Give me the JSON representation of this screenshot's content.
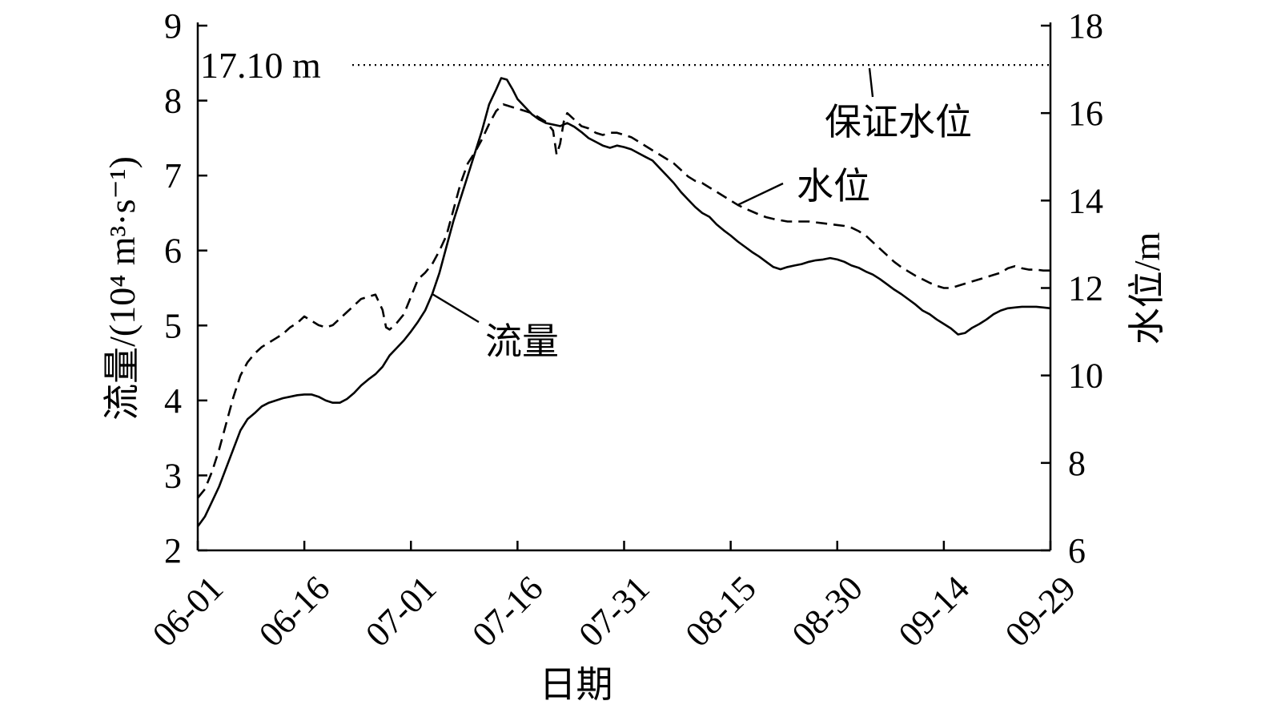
{
  "chart_data": {
    "type": "line",
    "xlabel": "日期",
    "x_tick_labels": [
      "06-01",
      "06-16",
      "07-01",
      "07-16",
      "07-31",
      "08-15",
      "08-30",
      "09-14",
      "09-29"
    ],
    "x_tick_days": [
      0,
      15,
      30,
      45,
      60,
      75,
      90,
      105,
      120
    ],
    "x_unit": "days since 06-01",
    "y_left": {
      "label": "流量/(10⁴ m³·s⁻¹)",
      "lim": [
        2,
        9
      ],
      "ticks": [
        "2",
        "3",
        "4",
        "5",
        "6",
        "7",
        "8",
        "9"
      ]
    },
    "y_right": {
      "label": "水位/m",
      "lim": [
        6,
        18
      ],
      "ticks": [
        "6",
        "8",
        "10",
        "12",
        "14",
        "16",
        "18"
      ]
    },
    "guarantee_level": {
      "value": 17.1,
      "text": "17.10 m",
      "label": "保证水位"
    },
    "series": [
      {
        "name": "流量",
        "axis": "left",
        "style": "solid",
        "points": [
          [
            0,
            2.32
          ],
          [
            1,
            2.45
          ],
          [
            2,
            2.65
          ],
          [
            3,
            2.85
          ],
          [
            4,
            3.1
          ],
          [
            5,
            3.35
          ],
          [
            6,
            3.6
          ],
          [
            7,
            3.75
          ],
          [
            8,
            3.83
          ],
          [
            9,
            3.92
          ],
          [
            10,
            3.97
          ],
          [
            11,
            4.0
          ],
          [
            12,
            4.03
          ],
          [
            13,
            4.05
          ],
          [
            14,
            4.07
          ],
          [
            15,
            4.08
          ],
          [
            16,
            4.08
          ],
          [
            17,
            4.05
          ],
          [
            18,
            4.0
          ],
          [
            19,
            3.97
          ],
          [
            20,
            3.97
          ],
          [
            21,
            4.02
          ],
          [
            22,
            4.1
          ],
          [
            23,
            4.2
          ],
          [
            24,
            4.28
          ],
          [
            25,
            4.35
          ],
          [
            26,
            4.45
          ],
          [
            27,
            4.6
          ],
          [
            28,
            4.7
          ],
          [
            29,
            4.8
          ],
          [
            30,
            4.92
          ],
          [
            31,
            5.05
          ],
          [
            32,
            5.2
          ],
          [
            33,
            5.42
          ],
          [
            34,
            5.7
          ],
          [
            35,
            6.05
          ],
          [
            36,
            6.4
          ],
          [
            37,
            6.7
          ],
          [
            38,
            7.0
          ],
          [
            39,
            7.3
          ],
          [
            40,
            7.6
          ],
          [
            41,
            7.95
          ],
          [
            42,
            8.15
          ],
          [
            42.7,
            8.3
          ],
          [
            43.5,
            8.28
          ],
          [
            44.3,
            8.15
          ],
          [
            45,
            8.02
          ],
          [
            46,
            7.92
          ],
          [
            47,
            7.82
          ],
          [
            48,
            7.75
          ],
          [
            49,
            7.7
          ],
          [
            50,
            7.68
          ],
          [
            51,
            7.66
          ],
          [
            52,
            7.7
          ],
          [
            53,
            7.65
          ],
          [
            54,
            7.58
          ],
          [
            55,
            7.5
          ],
          [
            56,
            7.45
          ],
          [
            57,
            7.4
          ],
          [
            58,
            7.37
          ],
          [
            59,
            7.4
          ],
          [
            60,
            7.38
          ],
          [
            61,
            7.35
          ],
          [
            62,
            7.3
          ],
          [
            63,
            7.25
          ],
          [
            64,
            7.2
          ],
          [
            65,
            7.1
          ],
          [
            66,
            7.0
          ],
          [
            67,
            6.9
          ],
          [
            68,
            6.78
          ],
          [
            69,
            6.68
          ],
          [
            70,
            6.58
          ],
          [
            71,
            6.5
          ],
          [
            72,
            6.45
          ],
          [
            73,
            6.35
          ],
          [
            74,
            6.27
          ],
          [
            75,
            6.2
          ],
          [
            76,
            6.12
          ],
          [
            77,
            6.05
          ],
          [
            78,
            5.98
          ],
          [
            79,
            5.92
          ],
          [
            80,
            5.85
          ],
          [
            81,
            5.78
          ],
          [
            82,
            5.75
          ],
          [
            83,
            5.78
          ],
          [
            84,
            5.8
          ],
          [
            85,
            5.82
          ],
          [
            86,
            5.85
          ],
          [
            87,
            5.87
          ],
          [
            88,
            5.88
          ],
          [
            89,
            5.9
          ],
          [
            90,
            5.88
          ],
          [
            91,
            5.85
          ],
          [
            92,
            5.8
          ],
          [
            93,
            5.77
          ],
          [
            94,
            5.72
          ],
          [
            95,
            5.68
          ],
          [
            96,
            5.62
          ],
          [
            97,
            5.55
          ],
          [
            98,
            5.48
          ],
          [
            99,
            5.42
          ],
          [
            100,
            5.35
          ],
          [
            101,
            5.28
          ],
          [
            102,
            5.2
          ],
          [
            103,
            5.15
          ],
          [
            104,
            5.08
          ],
          [
            105,
            5.02
          ],
          [
            106,
            4.96
          ],
          [
            107,
            4.88
          ],
          [
            108,
            4.9
          ],
          [
            109,
            4.97
          ],
          [
            110,
            5.02
          ],
          [
            111,
            5.08
          ],
          [
            112,
            5.15
          ],
          [
            113,
            5.2
          ],
          [
            114,
            5.23
          ],
          [
            115,
            5.24
          ],
          [
            116,
            5.25
          ],
          [
            117,
            5.25
          ],
          [
            118,
            5.25
          ],
          [
            119,
            5.24
          ],
          [
            120,
            5.23
          ]
        ]
      },
      {
        "name": "水位",
        "axis": "right",
        "style": "dashed",
        "points": [
          [
            0,
            7.2
          ],
          [
            1,
            7.4
          ],
          [
            2,
            7.8
          ],
          [
            3,
            8.3
          ],
          [
            4,
            8.9
          ],
          [
            5,
            9.5
          ],
          [
            6,
            10.0
          ],
          [
            7,
            10.3
          ],
          [
            8,
            10.5
          ],
          [
            9,
            10.65
          ],
          [
            10,
            10.75
          ],
          [
            11,
            10.85
          ],
          [
            12,
            10.95
          ],
          [
            13,
            11.1
          ],
          [
            14,
            11.2
          ],
          [
            15,
            11.35
          ],
          [
            16,
            11.25
          ],
          [
            17,
            11.15
          ],
          [
            18,
            11.1
          ],
          [
            19,
            11.15
          ],
          [
            20,
            11.3
          ],
          [
            21,
            11.45
          ],
          [
            22,
            11.6
          ],
          [
            23,
            11.75
          ],
          [
            24,
            11.8
          ],
          [
            25,
            11.85
          ],
          [
            26,
            11.5
          ],
          [
            26.5,
            11.1
          ],
          [
            27,
            11.05
          ],
          [
            28,
            11.2
          ],
          [
            29,
            11.4
          ],
          [
            30,
            11.8
          ],
          [
            31,
            12.2
          ],
          [
            32,
            12.35
          ],
          [
            33,
            12.55
          ],
          [
            34,
            12.85
          ],
          [
            35,
            13.2
          ],
          [
            36,
            13.8
          ],
          [
            37,
            14.4
          ],
          [
            38,
            14.85
          ],
          [
            39,
            15.1
          ],
          [
            40,
            15.4
          ],
          [
            41,
            15.75
          ],
          [
            42,
            16.05
          ],
          [
            43,
            16.2
          ],
          [
            44,
            16.15
          ],
          [
            45,
            16.1
          ],
          [
            46,
            16.05
          ],
          [
            47,
            16.0
          ],
          [
            48,
            15.9
          ],
          [
            49,
            15.8
          ],
          [
            50,
            15.6
          ],
          [
            50.5,
            15.05
          ],
          [
            51,
            15.3
          ],
          [
            51.5,
            15.8
          ],
          [
            52,
            16.0
          ],
          [
            53,
            15.85
          ],
          [
            54,
            15.7
          ],
          [
            55,
            15.65
          ],
          [
            56,
            15.55
          ],
          [
            57,
            15.5
          ],
          [
            58,
            15.55
          ],
          [
            59,
            15.55
          ],
          [
            60,
            15.5
          ],
          [
            61,
            15.45
          ],
          [
            62,
            15.35
          ],
          [
            63,
            15.25
          ],
          [
            64,
            15.15
          ],
          [
            65,
            15.05
          ],
          [
            66,
            14.95
          ],
          [
            67,
            14.85
          ],
          [
            68,
            14.7
          ],
          [
            69,
            14.55
          ],
          [
            70,
            14.45
          ],
          [
            71,
            14.4
          ],
          [
            72,
            14.3
          ],
          [
            73,
            14.2
          ],
          [
            74,
            14.1
          ],
          [
            75,
            14.0
          ],
          [
            76,
            13.9
          ],
          [
            77,
            13.82
          ],
          [
            78,
            13.75
          ],
          [
            79,
            13.68
          ],
          [
            80,
            13.62
          ],
          [
            81,
            13.58
          ],
          [
            82,
            13.55
          ],
          [
            83,
            13.52
          ],
          [
            84,
            13.52
          ],
          [
            85,
            13.52
          ],
          [
            86,
            13.52
          ],
          [
            87,
            13.5
          ],
          [
            88,
            13.48
          ],
          [
            89,
            13.46
          ],
          [
            90,
            13.44
          ],
          [
            91,
            13.42
          ],
          [
            92,
            13.38
          ],
          [
            93,
            13.3
          ],
          [
            94,
            13.2
          ],
          [
            95,
            13.05
          ],
          [
            96,
            12.9
          ],
          [
            97,
            12.75
          ],
          [
            98,
            12.6
          ],
          [
            99,
            12.48
          ],
          [
            100,
            12.38
          ],
          [
            101,
            12.28
          ],
          [
            102,
            12.2
          ],
          [
            103,
            12.12
          ],
          [
            104,
            12.05
          ],
          [
            105,
            12.0
          ],
          [
            106,
            12.0
          ],
          [
            107,
            12.05
          ],
          [
            108,
            12.1
          ],
          [
            109,
            12.15
          ],
          [
            110,
            12.2
          ],
          [
            111,
            12.25
          ],
          [
            112,
            12.3
          ],
          [
            113,
            12.35
          ],
          [
            114,
            12.45
          ],
          [
            115,
            12.5
          ],
          [
            116,
            12.45
          ],
          [
            117,
            12.42
          ],
          [
            118,
            12.42
          ],
          [
            119,
            12.4
          ],
          [
            120,
            12.4
          ]
        ]
      }
    ],
    "annotations": [
      {
        "text": "流量",
        "target_series": "流量"
      },
      {
        "text": "水位",
        "target_series": "水位"
      },
      {
        "text": "保证水位",
        "target": "guarantee_level"
      }
    ]
  }
}
